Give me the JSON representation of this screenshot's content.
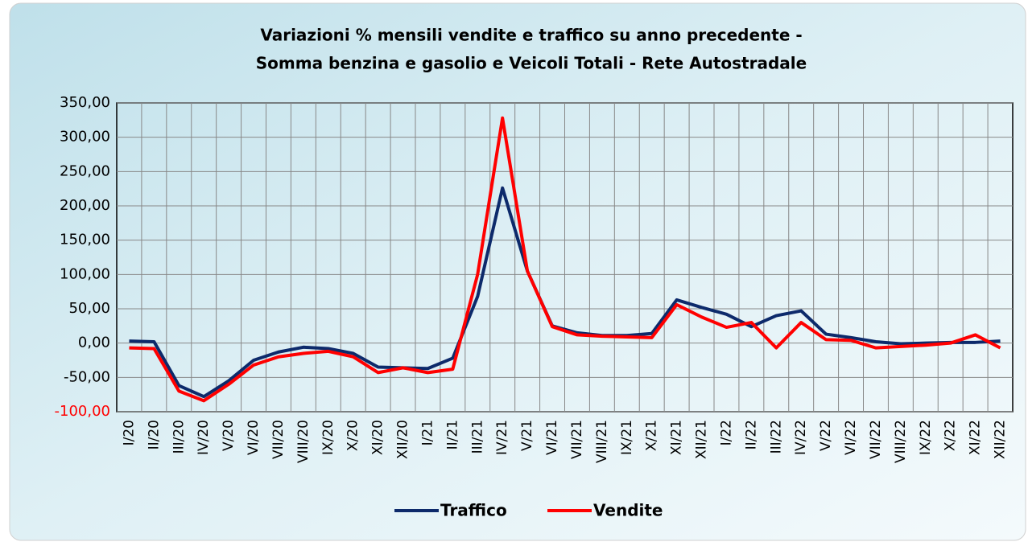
{
  "chart_data": {
    "type": "line",
    "title": [
      "Variazioni % mensili vendite e traffico su anno precedente -",
      "Somma benzina e gasolio e Veicoli Totali - Rete Autostradale"
    ],
    "categories": [
      "I/20",
      "II/20",
      "III/20",
      "IV/20",
      "V/20",
      "VI/20",
      "VII/20",
      "VIII/20",
      "IX/20",
      "X/20",
      "XI/20",
      "XII/20",
      "I/21",
      "II/21",
      "III/21",
      "IV/21",
      "V/21",
      "VI/21",
      "VII/21",
      "VIII/21",
      "IX/21",
      "X/21",
      "XI/21",
      "XII/21",
      "I/22",
      "II/22",
      "III/22",
      "IV/22",
      "V/22",
      "VI/22",
      "VII/22",
      "VIII/22",
      "IX/22",
      "X/22",
      "XI/22",
      "XII/22"
    ],
    "series": [
      {
        "name": "Traffico",
        "color": "#0d2a6b",
        "values": [
          3,
          2,
          -62,
          -78,
          -55,
          -25,
          -13,
          -6,
          -8,
          -15,
          -35,
          -36,
          -37,
          -22,
          68,
          226,
          105,
          25,
          15,
          11,
          11,
          14,
          63,
          52,
          42,
          24,
          40,
          47,
          13,
          8,
          2,
          -1,
          0,
          1,
          1,
          3
        ]
      },
      {
        "name": "Vendite",
        "color": "#ff0000",
        "values": [
          -7,
          -8,
          -70,
          -84,
          -60,
          -32,
          -20,
          -15,
          -12,
          -20,
          -43,
          -36,
          -43,
          -38,
          100,
          328,
          105,
          24,
          12,
          10,
          9,
          8,
          56,
          38,
          23,
          30,
          -7,
          30,
          5,
          4,
          -7,
          -5,
          -3,
          0,
          12,
          -7
        ]
      }
    ],
    "ylim": [
      -100,
      350
    ],
    "yticks": [
      {
        "value": -100,
        "label": "-100,00",
        "color": "#ff0000"
      },
      {
        "value": -50,
        "label": "-50,00"
      },
      {
        "value": 0,
        "label": "0,00"
      },
      {
        "value": 50,
        "label": "50,00"
      },
      {
        "value": 100,
        "label": "100,00"
      },
      {
        "value": 150,
        "label": "150,00"
      },
      {
        "value": 200,
        "label": "200,00"
      },
      {
        "value": 250,
        "label": "250,00"
      },
      {
        "value": 300,
        "label": "300,00"
      },
      {
        "value": 350,
        "label": "350,00"
      }
    ],
    "grid": true,
    "legend": "bottom"
  }
}
